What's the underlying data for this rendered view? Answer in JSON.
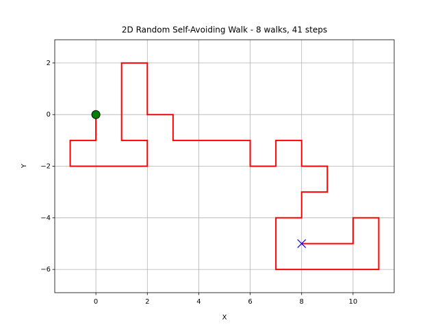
{
  "chart_data": {
    "type": "line",
    "title": "2D Random Self-Avoiding Walk - 8 walks, 41 steps",
    "xlabel": "X",
    "ylabel": "Y",
    "xlim": [
      -1.6,
      11.6
    ],
    "ylim": [
      -6.9,
      2.9
    ],
    "xticks": [
      0,
      2,
      4,
      6,
      8,
      10
    ],
    "yticks": [
      {
        "value": -6,
        "label": "−6"
      },
      {
        "value": -4,
        "label": "−4"
      },
      {
        "value": -2,
        "label": "−2"
      },
      0,
      2
    ],
    "grid": true,
    "series": [
      {
        "color": "#ff0000",
        "marker": "none",
        "x": [
          0,
          0,
          -1,
          -1,
          0,
          1,
          2,
          2,
          1,
          1,
          1,
          1,
          2,
          2,
          2,
          3,
          3,
          4,
          5,
          6,
          6,
          7,
          7,
          8,
          8,
          9,
          9,
          8,
          8,
          7,
          7,
          7,
          8,
          9,
          10,
          11,
          11,
          11,
          10,
          10,
          9,
          8
        ],
        "y": [
          0,
          -1,
          -1,
          -2,
          -2,
          -2,
          -2,
          -1,
          -1,
          0,
          1,
          2,
          2,
          1,
          0,
          0,
          -1,
          -1,
          -1,
          -1,
          -2,
          -2,
          -1,
          -1,
          -2,
          -2,
          -3,
          -3,
          -4,
          -4,
          -5,
          -6,
          -6,
          -6,
          -6,
          -6,
          -5,
          -4,
          -4,
          -5,
          -5,
          -5
        ]
      },
      {
        "color": "#008000",
        "marker": "circle",
        "x": [
          0
        ],
        "y": [
          0
        ]
      },
      {
        "color": "#0000ff",
        "marker": "x",
        "x": [
          8
        ],
        "y": [
          -5
        ]
      }
    ]
  }
}
